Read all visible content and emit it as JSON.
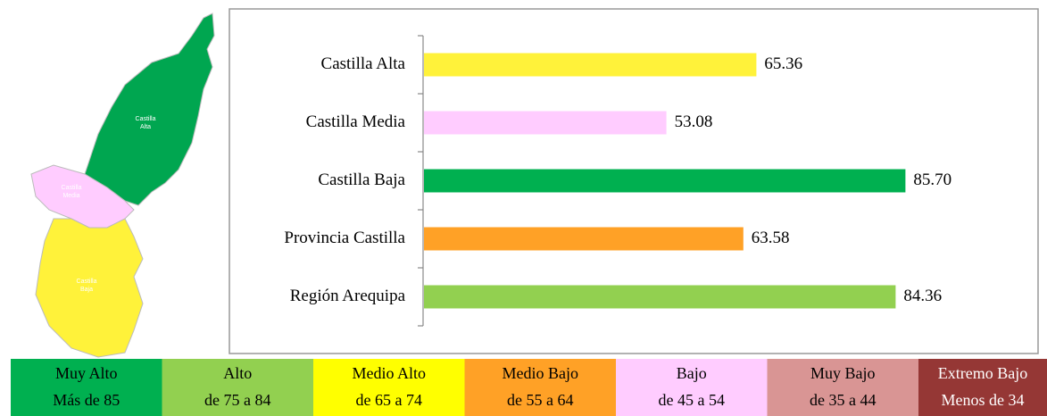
{
  "chart_data": {
    "type": "bar",
    "orientation": "horizontal",
    "categories": [
      "Castilla Alta",
      "Castilla Media",
      "Castilla Baja",
      "Provincia Castilla",
      "Región Arequipa"
    ],
    "values": [
      65.36,
      53.08,
      85.7,
      63.58,
      84.36
    ],
    "value_labels": [
      "65.36",
      "53.08",
      "85.70",
      "63.58",
      "84.36"
    ],
    "colors": [
      "#fff23a",
      "#ffccff",
      "#00b050",
      "#ffa126",
      "#92d050"
    ],
    "xlim": [
      20,
      90
    ]
  },
  "map": {
    "regions": [
      {
        "label": [
          "Castilla",
          "Alta"
        ],
        "color": "#00a650"
      },
      {
        "label": [
          "Castilla",
          "Media"
        ],
        "color": "#ffccff"
      },
      {
        "label": [
          "Castilla",
          "Baja"
        ],
        "color": "#fff23a"
      }
    ]
  },
  "legend_table": [
    {
      "name": "Muy Alto",
      "range": "Más de 85",
      "color": "#00b050",
      "text_color": "#000000"
    },
    {
      "name": "Alto",
      "range": "de 75 a 84",
      "color": "#92d050",
      "text_color": "#000000"
    },
    {
      "name": "Medio Alto",
      "range": "de 65 a 74",
      "color": "#ffff00",
      "text_color": "#000000"
    },
    {
      "name": "Medio Bajo",
      "range": "de 55 a 64",
      "color": "#ffa126",
      "text_color": "#000000"
    },
    {
      "name": "Bajo",
      "range": "de 45 a 54",
      "color": "#ffccff",
      "text_color": "#000000"
    },
    {
      "name": "Muy Bajo",
      "range": "de 35 a 44",
      "color": "#d99594",
      "text_color": "#000000"
    },
    {
      "name": "Extremo Bajo",
      "range": "Menos de 34",
      "color": "#953735",
      "text_color": "#ffffff"
    }
  ]
}
